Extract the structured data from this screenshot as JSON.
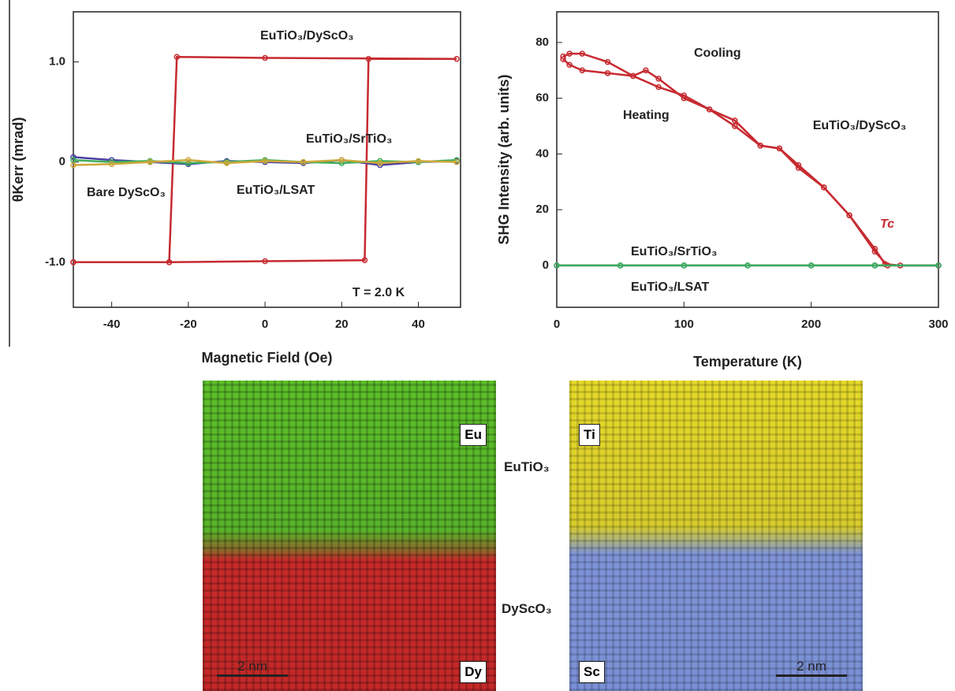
{
  "chart_data": [
    {
      "type": "line",
      "xlabel": "Magnetic Field (Oe)",
      "ylabel": "θKerr (mrad)",
      "xlim": [
        -50,
        51
      ],
      "ylim": [
        -1.45,
        1.5
      ],
      "xticks": [
        -40,
        -20,
        0,
        20,
        40
      ],
      "yticks": [
        {
          "value": -1,
          "label": "-1.0"
        },
        0,
        {
          "value": 1,
          "label": "1.0"
        }
      ],
      "series": [
        {
          "name": "EuTiO₃/DyScO₃",
          "color": "#c62a30",
          "x": [
            -50,
            -25,
            0,
            26,
            27,
            50,
            0,
            -23,
            -25,
            -50
          ],
          "values": [
            -1.0,
            -1.0,
            -0.99,
            -0.98,
            1.03,
            1.03,
            1.04,
            1.05,
            -1.0,
            -1.0
          ]
        },
        {
          "name": "EuTiO₃/SrTiO₃",
          "color": "#4b3fa3",
          "x": [
            -50,
            -40,
            -30,
            -20,
            -10,
            0,
            10,
            20,
            30,
            40,
            50
          ],
          "values": [
            0.05,
            0.02,
            0,
            -0.02,
            0.01,
            0,
            -0.01,
            0.02,
            -0.03,
            0,
            0.01
          ]
        },
        {
          "name": "EuTiO₃/LSAT",
          "color": "#3cae5a",
          "x": [
            -50,
            -40,
            -30,
            -20,
            -10,
            0,
            10,
            20,
            30,
            40,
            50
          ],
          "values": [
            0.02,
            0,
            0.01,
            -0.01,
            0,
            0.02,
            0,
            -0.01,
            0.01,
            0,
            0.02
          ]
        },
        {
          "name": "Bare DyScO₃",
          "color": "#cfa83a",
          "x": [
            -50,
            -40,
            -30,
            -20,
            -10,
            0,
            10,
            20,
            30,
            40,
            50
          ],
          "values": [
            -0.03,
            -0.02,
            0,
            0.02,
            -0.01,
            0.01,
            0,
            0.02,
            -0.01,
            0.01,
            0
          ]
        }
      ],
      "annotations": [
        "T = 2.0 K"
      ]
    },
    {
      "type": "line",
      "xlabel": "Temperature (K)",
      "ylabel": "SHG Intensity (arb. units)",
      "xlim": [
        0,
        300
      ],
      "ylim": [
        -15,
        91
      ],
      "xticks": [
        0,
        100,
        200,
        300
      ],
      "yticks": [
        0,
        20,
        40,
        60,
        80
      ],
      "series": [
        {
          "name": "Cooling",
          "color": "#c62a30",
          "x": [
            5,
            10,
            20,
            40,
            60,
            70,
            80,
            100,
            120,
            140,
            160,
            175,
            190,
            210,
            230,
            250,
            258,
            270,
            300
          ],
          "values": [
            75,
            76,
            76,
            73,
            68,
            70,
            67,
            60,
            56,
            50,
            43,
            42,
            36,
            28,
            18,
            6,
            0.5,
            0,
            0
          ]
        },
        {
          "name": "Heating",
          "color": "#c62a30",
          "x": [
            5,
            10,
            20,
            40,
            60,
            80,
            100,
            120,
            140,
            160,
            175,
            190,
            210,
            230,
            250,
            260,
            300
          ],
          "values": [
            74,
            72,
            70,
            69,
            68,
            64,
            61,
            56,
            52,
            43,
            42,
            35,
            28,
            18,
            5,
            0,
            0
          ]
        },
        {
          "name": "EuTiO₃/SrTiO₃",
          "color": "#4b3fa3",
          "x": [
            0,
            50,
            100,
            150,
            200,
            250,
            300
          ],
          "values": [
            0,
            0,
            0,
            0,
            0,
            0,
            0
          ]
        },
        {
          "name": "EuTiO₃/LSAT",
          "color": "#3cae5a",
          "x": [
            0,
            50,
            100,
            150,
            200,
            250,
            300
          ],
          "values": [
            0,
            0,
            0,
            0,
            0,
            0,
            0
          ]
        }
      ],
      "annotations": [
        "EuTiO₃/DyScO₃",
        "Tc"
      ]
    }
  ],
  "maps": {
    "left": {
      "top": "Eu",
      "bottom": "Dy",
      "scale": "2 nm"
    },
    "right": {
      "top": "Ti",
      "bottom": "Sc",
      "scale": "2 nm"
    },
    "layers": [
      "EuTiO₃",
      "DyScO₃"
    ]
  }
}
